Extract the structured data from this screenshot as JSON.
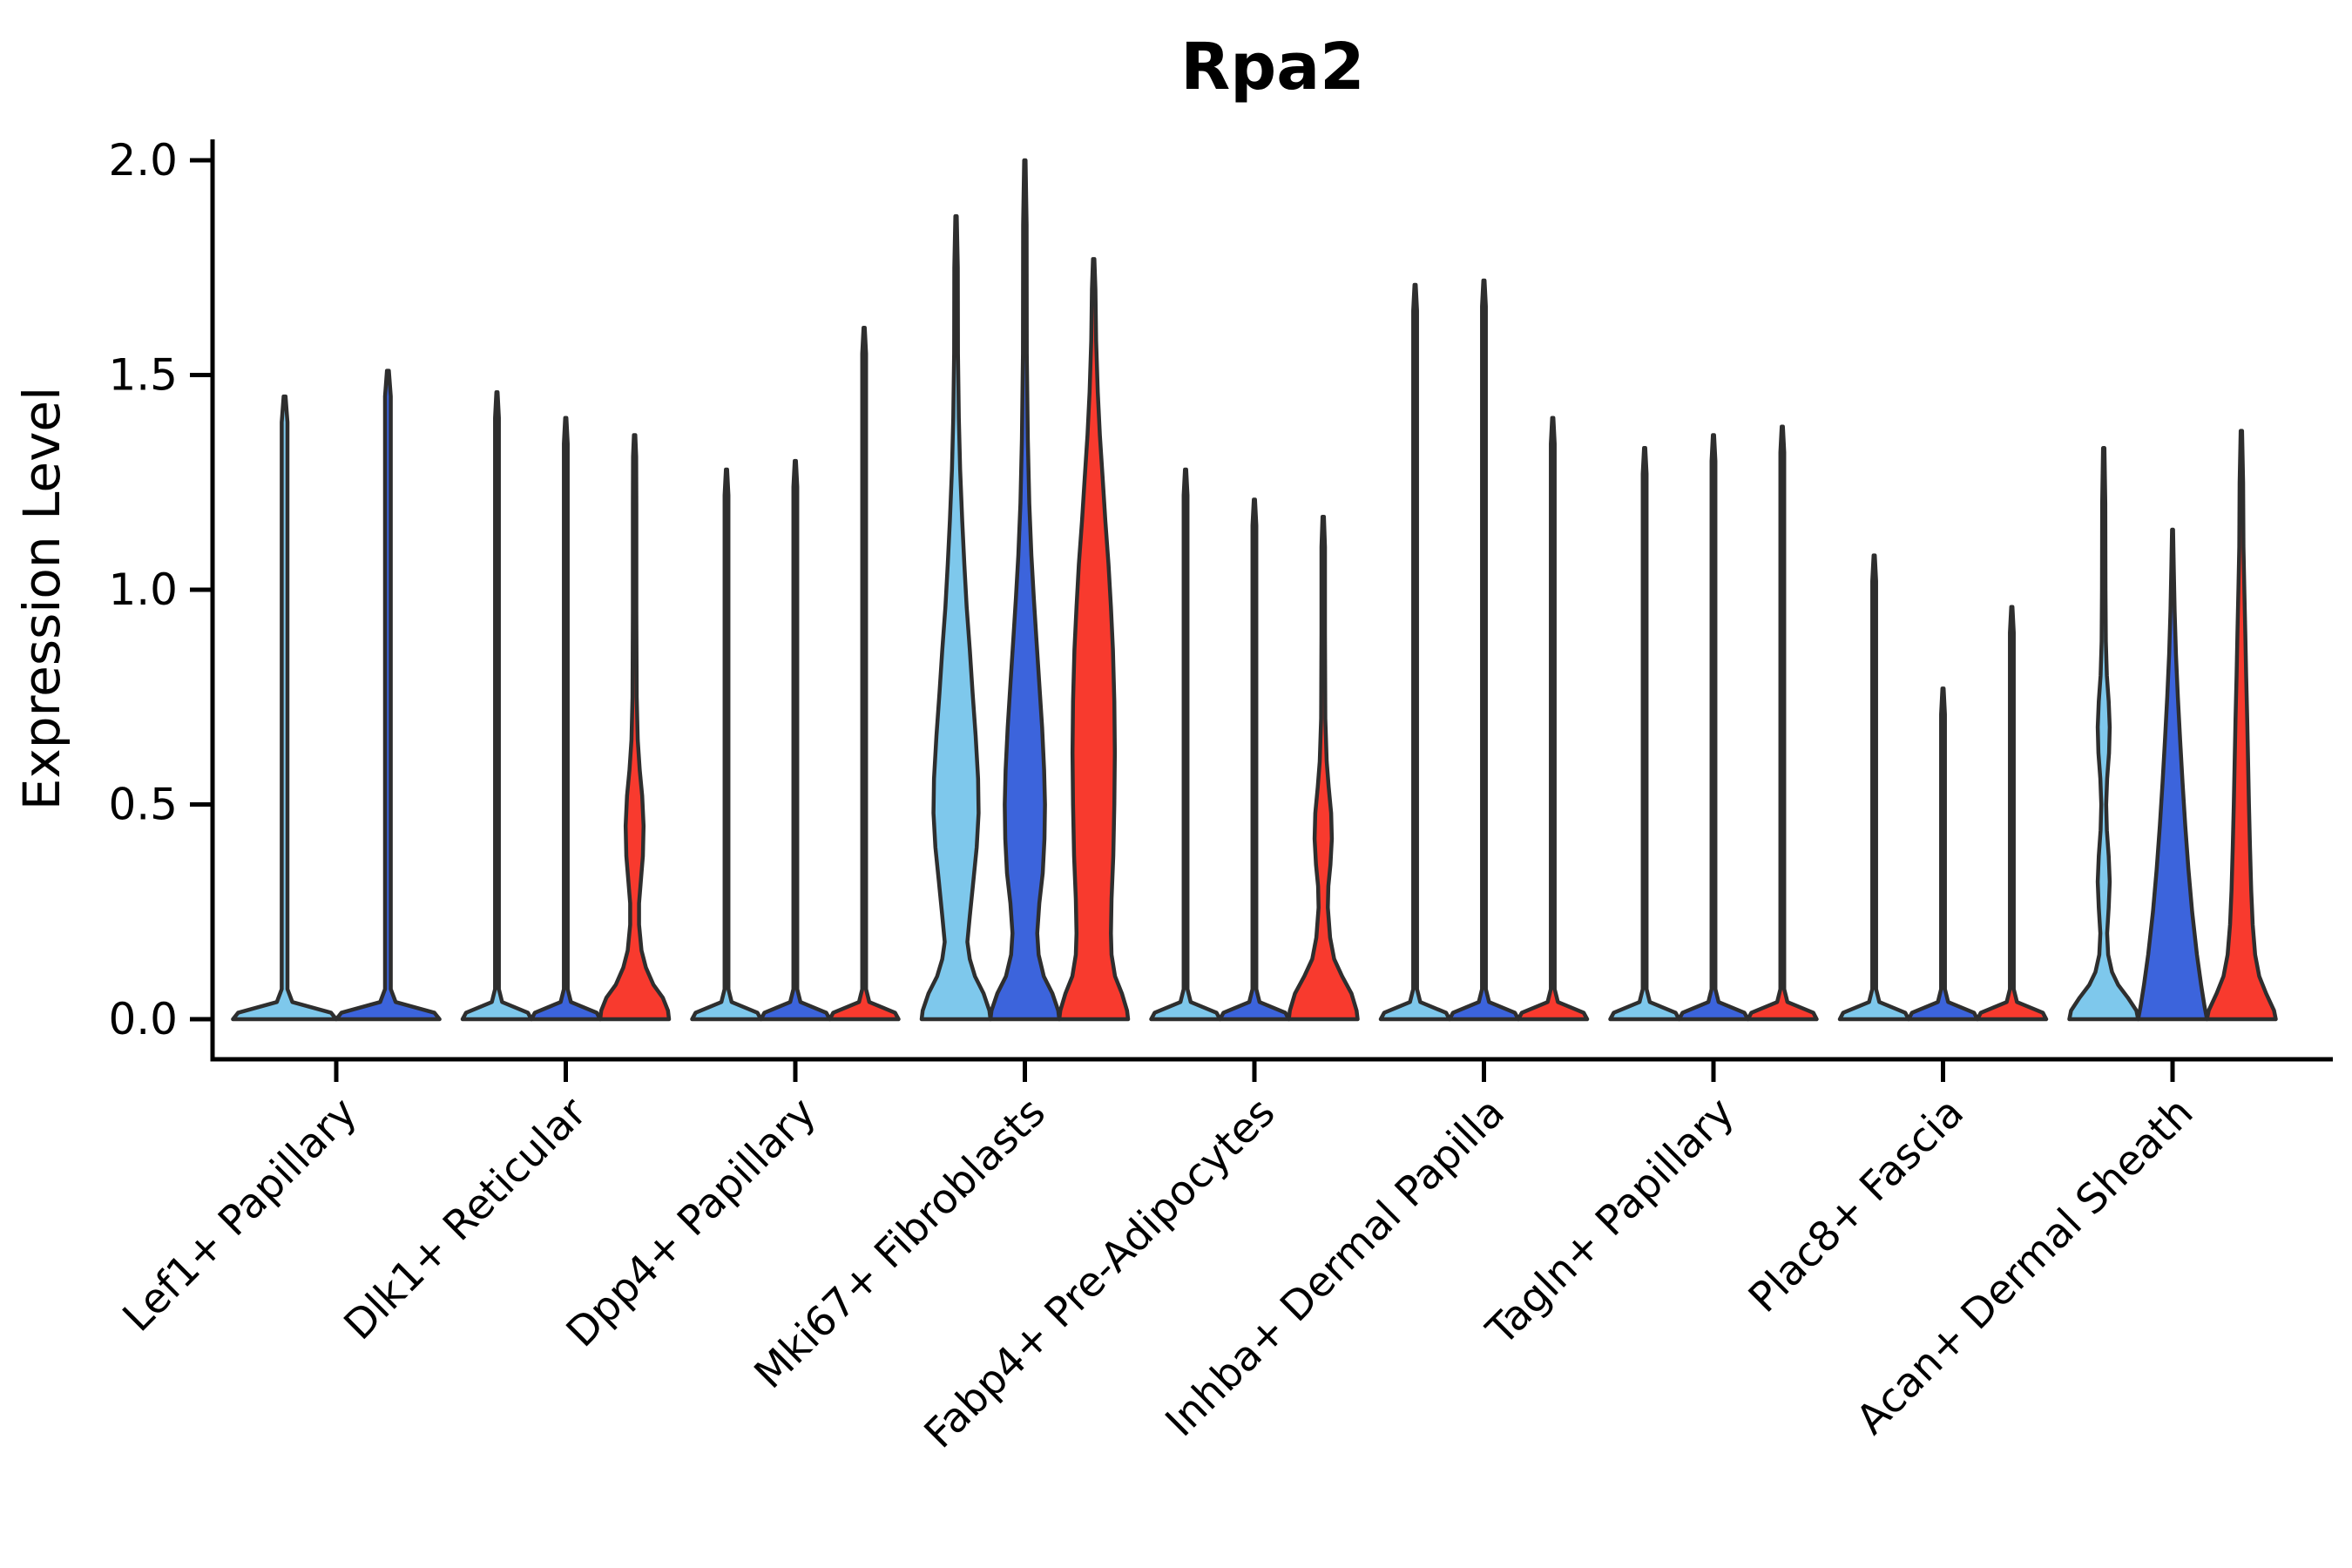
{
  "title": "Rpa2",
  "ylabel": "Expression Level",
  "chart_data": {
    "type": "violin",
    "title": "Rpa2",
    "subtitle": "",
    "xlabel": "",
    "ylabel": "Expression Level",
    "ylim": [
      -0.09,
      2.06
    ],
    "yticks": [
      0.0,
      0.5,
      1.0,
      1.5,
      2.0
    ],
    "ytick_labels": [
      "0.0",
      "0.5",
      "1.0",
      "1.5",
      "2.0"
    ],
    "grid": "off",
    "legend_position": "none",
    "split_colors": [
      "#7EC8EC",
      "#3C64DC",
      "#F83A2E"
    ],
    "edge_color": "#2E2E2E",
    "axis_color": "#000000",
    "categories": [
      "Lef1+ Papillary",
      "Dlk1+ Reticular",
      "Dpp4+ Papillary",
      "Mki67+ Fibroblasts",
      "Fabp4+ Pre-Adipocytes",
      "Inhba+ Dermal Papilla",
      "Tagln+ Papillary",
      "Plac8+ Fascia",
      "Acan+ Dermal Sheath"
    ],
    "profiles": {
      "spike_base": [
        [
          0,
          1.0
        ],
        [
          0.015,
          0.9
        ],
        [
          0.04,
          0.15
        ],
        [
          0.07,
          0.055
        ]
      ],
      "spike_stem_halfwidth": 0.055,
      "dlk1_red": [
        [
          0,
          1.0
        ],
        [
          0.02,
          0.97
        ],
        [
          0.05,
          0.82
        ],
        [
          0.08,
          0.55
        ],
        [
          0.12,
          0.33
        ],
        [
          0.16,
          0.2
        ],
        [
          0.22,
          0.13
        ],
        [
          0.27,
          0.13
        ],
        [
          0.32,
          0.18
        ],
        [
          0.38,
          0.24
        ],
        [
          0.45,
          0.26
        ],
        [
          0.52,
          0.22
        ],
        [
          0.58,
          0.15
        ],
        [
          0.65,
          0.09
        ],
        [
          0.75,
          0.06
        ],
        [
          0.95,
          0.05
        ],
        [
          1.2,
          0.05
        ],
        [
          1.31,
          0.045
        ],
        [
          1.36,
          0.02
        ]
      ],
      "fabp4_red": [
        [
          0,
          1.0
        ],
        [
          0.02,
          0.97
        ],
        [
          0.06,
          0.82
        ],
        [
          0.1,
          0.55
        ],
        [
          0.14,
          0.32
        ],
        [
          0.19,
          0.2
        ],
        [
          0.26,
          0.135
        ],
        [
          0.31,
          0.15
        ],
        [
          0.36,
          0.21
        ],
        [
          0.42,
          0.25
        ],
        [
          0.48,
          0.23
        ],
        [
          0.54,
          0.16
        ],
        [
          0.6,
          0.1
        ],
        [
          0.7,
          0.06
        ],
        [
          0.9,
          0.05
        ],
        [
          1.1,
          0.05
        ],
        [
          1.17,
          0.02
        ]
      ],
      "mki67_lightblue": [
        [
          0,
          1.0
        ],
        [
          0.02,
          0.97
        ],
        [
          0.06,
          0.8
        ],
        [
          0.1,
          0.55
        ],
        [
          0.14,
          0.4
        ],
        [
          0.18,
          0.33
        ],
        [
          0.24,
          0.4
        ],
        [
          0.32,
          0.5
        ],
        [
          0.4,
          0.6
        ],
        [
          0.48,
          0.655
        ],
        [
          0.56,
          0.64
        ],
        [
          0.66,
          0.57
        ],
        [
          0.76,
          0.48
        ],
        [
          0.86,
          0.4
        ],
        [
          0.96,
          0.31
        ],
        [
          1.06,
          0.24
        ],
        [
          1.16,
          0.18
        ],
        [
          1.28,
          0.12
        ],
        [
          1.4,
          0.08
        ],
        [
          1.55,
          0.055
        ],
        [
          1.75,
          0.05
        ],
        [
          1.87,
          0.02
        ]
      ],
      "mki67_darkblue": [
        [
          0,
          1.0
        ],
        [
          0.02,
          0.97
        ],
        [
          0.06,
          0.8
        ],
        [
          0.1,
          0.55
        ],
        [
          0.15,
          0.4
        ],
        [
          0.2,
          0.36
        ],
        [
          0.27,
          0.42
        ],
        [
          0.34,
          0.52
        ],
        [
          0.42,
          0.57
        ],
        [
          0.5,
          0.585
        ],
        [
          0.58,
          0.56
        ],
        [
          0.68,
          0.5
        ],
        [
          0.78,
          0.42
        ],
        [
          0.88,
          0.34
        ],
        [
          0.98,
          0.26
        ],
        [
          1.08,
          0.19
        ],
        [
          1.2,
          0.13
        ],
        [
          1.35,
          0.085
        ],
        [
          1.55,
          0.055
        ],
        [
          1.85,
          0.05
        ],
        [
          2.0,
          0.02
        ]
      ],
      "mki67_red": [
        [
          0,
          1.0
        ],
        [
          0.02,
          0.97
        ],
        [
          0.06,
          0.82
        ],
        [
          0.1,
          0.62
        ],
        [
          0.15,
          0.52
        ],
        [
          0.2,
          0.5
        ],
        [
          0.28,
          0.52
        ],
        [
          0.38,
          0.57
        ],
        [
          0.5,
          0.6
        ],
        [
          0.62,
          0.615
        ],
        [
          0.74,
          0.6
        ],
        [
          0.86,
          0.56
        ],
        [
          0.96,
          0.5
        ],
        [
          1.06,
          0.43
        ],
        [
          1.16,
          0.34
        ],
        [
          1.26,
          0.26
        ],
        [
          1.36,
          0.18
        ],
        [
          1.46,
          0.12
        ],
        [
          1.58,
          0.07
        ],
        [
          1.7,
          0.05
        ],
        [
          1.77,
          0.02
        ]
      ],
      "acan_lightblue": [
        [
          0,
          1.0
        ],
        [
          0.02,
          0.95
        ],
        [
          0.05,
          0.7
        ],
        [
          0.08,
          0.42
        ],
        [
          0.11,
          0.24
        ],
        [
          0.15,
          0.13
        ],
        [
          0.2,
          0.1
        ],
        [
          0.26,
          0.145
        ],
        [
          0.32,
          0.175
        ],
        [
          0.38,
          0.145
        ],
        [
          0.44,
          0.09
        ],
        [
          0.5,
          0.07
        ],
        [
          0.56,
          0.1
        ],
        [
          0.62,
          0.155
        ],
        [
          0.68,
          0.175
        ],
        [
          0.74,
          0.145
        ],
        [
          0.8,
          0.09
        ],
        [
          0.88,
          0.06
        ],
        [
          1.0,
          0.05
        ],
        [
          1.2,
          0.045
        ],
        [
          1.33,
          0.02
        ]
      ],
      "acan_darkblue": [
        [
          0,
          1.0
        ],
        [
          0.03,
          0.93
        ],
        [
          0.08,
          0.83
        ],
        [
          0.15,
          0.71
        ],
        [
          0.25,
          0.57
        ],
        [
          0.35,
          0.46
        ],
        [
          0.45,
          0.37
        ],
        [
          0.55,
          0.29
        ],
        [
          0.65,
          0.22
        ],
        [
          0.75,
          0.155
        ],
        [
          0.85,
          0.1
        ],
        [
          0.95,
          0.06
        ],
        [
          1.05,
          0.035
        ],
        [
          1.14,
          0.015
        ]
      ],
      "acan_red": [
        [
          0,
          1.0
        ],
        [
          0.02,
          0.95
        ],
        [
          0.06,
          0.72
        ],
        [
          0.1,
          0.52
        ],
        [
          0.15,
          0.4
        ],
        [
          0.22,
          0.33
        ],
        [
          0.3,
          0.285
        ],
        [
          0.4,
          0.25
        ],
        [
          0.5,
          0.22
        ],
        [
          0.6,
          0.195
        ],
        [
          0.7,
          0.17
        ],
        [
          0.8,
          0.14
        ],
        [
          0.9,
          0.115
        ],
        [
          1.0,
          0.085
        ],
        [
          1.1,
          0.06
        ],
        [
          1.25,
          0.05
        ],
        [
          1.37,
          0.02
        ]
      ]
    },
    "groups": [
      {
        "label": "Lef1+ Papillary",
        "violins": [
          {
            "split": 0,
            "max": 1.45,
            "body": "spike"
          },
          {
            "split": 1,
            "max": 1.51,
            "body": "spike"
          }
        ]
      },
      {
        "label": "Dlk1+ Reticular",
        "violins": [
          {
            "split": 0,
            "max": 1.46,
            "body": "spike"
          },
          {
            "split": 1,
            "max": 1.4,
            "body": "spike"
          },
          {
            "split": 2,
            "max": 1.36,
            "body": "dlk1_red"
          }
        ]
      },
      {
        "label": "Dpp4+ Papillary",
        "violins": [
          {
            "split": 0,
            "max": 1.28,
            "body": "spike"
          },
          {
            "split": 1,
            "max": 1.3,
            "body": "spike"
          },
          {
            "split": 2,
            "max": 1.61,
            "body": "spike"
          }
        ]
      },
      {
        "label": "Mki67+ Fibroblasts",
        "violins": [
          {
            "split": 0,
            "max": 1.87,
            "body": "mki67_lightblue"
          },
          {
            "split": 1,
            "max": 2.0,
            "body": "mki67_darkblue"
          },
          {
            "split": 2,
            "max": 1.77,
            "body": "mki67_red"
          }
        ]
      },
      {
        "label": "Fabp4+ Pre-Adipocytes",
        "violins": [
          {
            "split": 0,
            "max": 1.28,
            "body": "spike"
          },
          {
            "split": 1,
            "max": 1.21,
            "body": "spike"
          },
          {
            "split": 2,
            "max": 1.17,
            "body": "fabp4_red"
          }
        ]
      },
      {
        "label": "Inhba+ Dermal Papilla",
        "violins": [
          {
            "split": 0,
            "max": 1.71,
            "body": "spike"
          },
          {
            "split": 1,
            "max": 1.72,
            "body": "spike"
          },
          {
            "split": 2,
            "max": 1.4,
            "body": "spike"
          }
        ]
      },
      {
        "label": "Tagln+ Papillary",
        "violins": [
          {
            "split": 0,
            "max": 1.33,
            "body": "spike"
          },
          {
            "split": 1,
            "max": 1.36,
            "body": "spike"
          },
          {
            "split": 2,
            "max": 1.38,
            "body": "spike"
          }
        ]
      },
      {
        "label": "Plac8+ Fascia",
        "violins": [
          {
            "split": 0,
            "max": 1.08,
            "body": "spike"
          },
          {
            "split": 1,
            "max": 0.77,
            "body": "spike"
          },
          {
            "split": 2,
            "max": 0.96,
            "body": "spike"
          }
        ]
      },
      {
        "label": "Acan+ Dermal Sheath",
        "violins": [
          {
            "split": 0,
            "max": 1.33,
            "body": "acan_lightblue"
          },
          {
            "split": 1,
            "max": 1.14,
            "body": "acan_darkblue"
          },
          {
            "split": 2,
            "max": 1.37,
            "body": "acan_red"
          }
        ]
      }
    ]
  }
}
